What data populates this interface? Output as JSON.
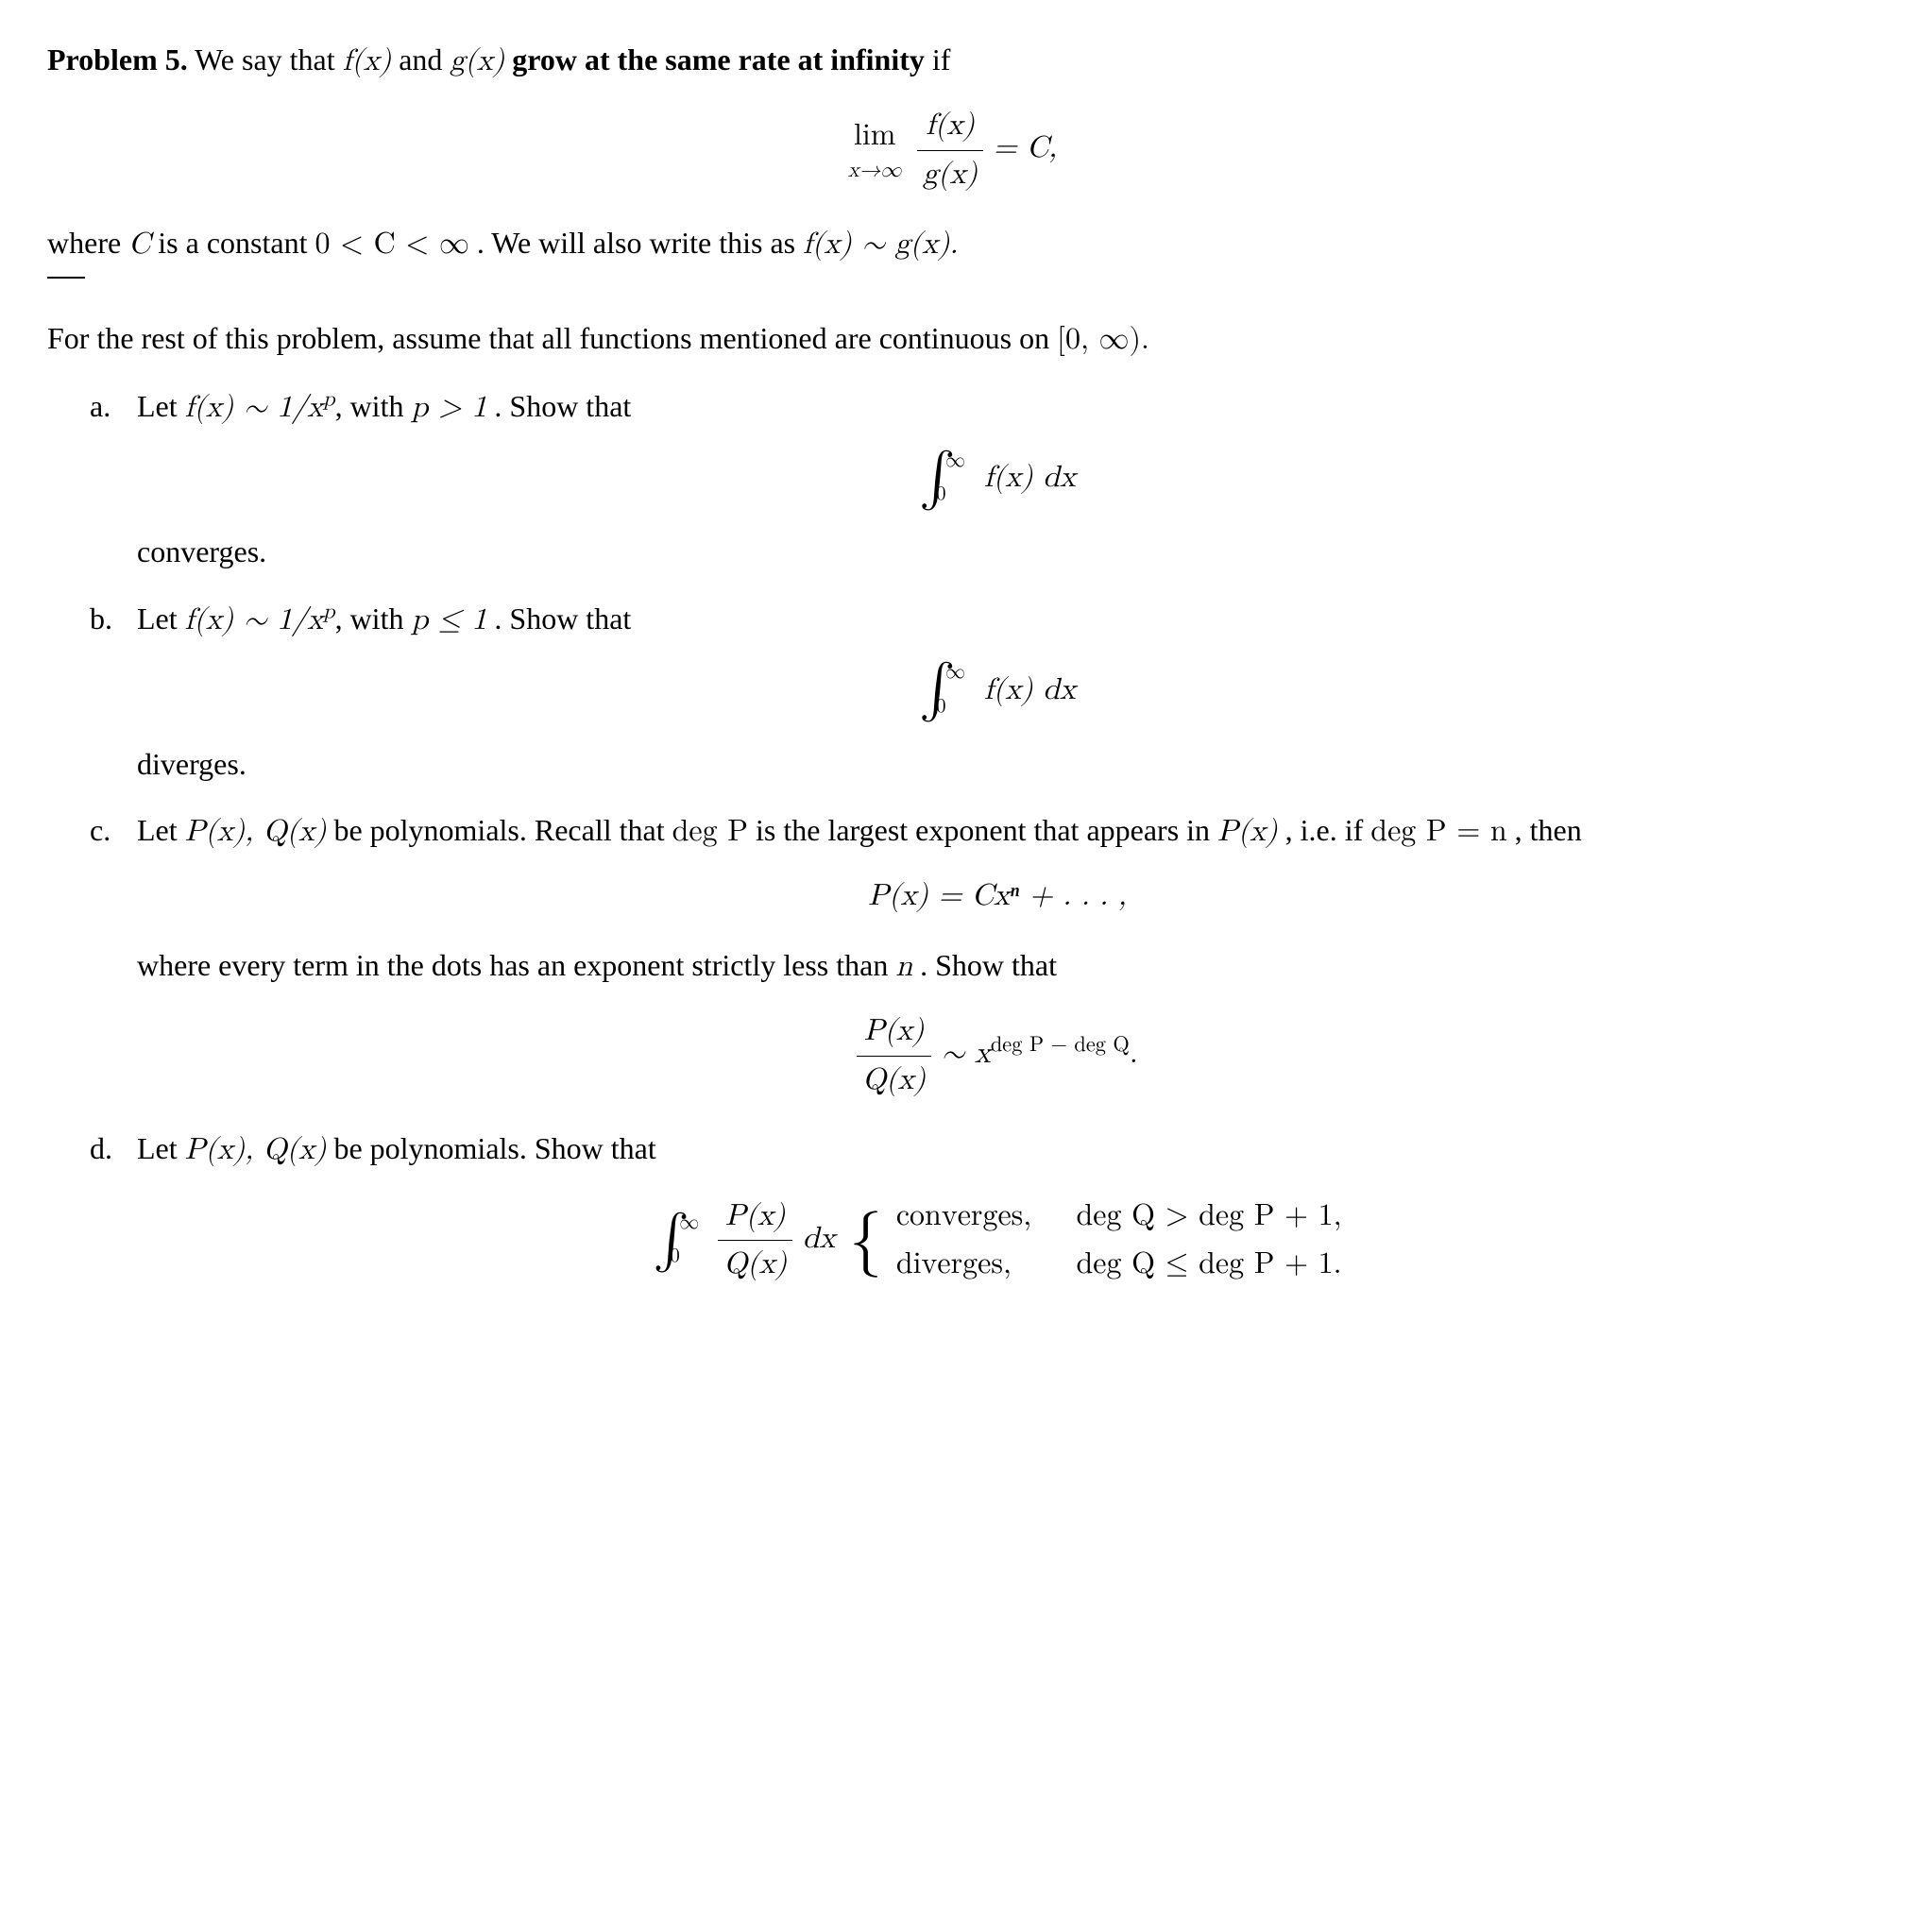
{
  "problem": {
    "number_label": "Problem 5.",
    "intro_text_1": " We say that ",
    "intro_f": "f(x)",
    "intro_and": " and ",
    "intro_g": "g(x)",
    "bold_grow": " grow at the same rate at infinity ",
    "intro_if": "if",
    "limit_expr_lim": "lim",
    "limit_expr_sub": "x→∞",
    "limit_frac_num": "f(x)",
    "limit_frac_den": "g(x)",
    "limit_eq": " = C,",
    "where_text_1": "where ",
    "where_C": "C",
    "where_text_2": " is a constant ",
    "where_ineq": "0 < C < ∞",
    "where_text_3": ". We will also write this as ",
    "where_rel": "f(x) ∼ g(x).",
    "for_rest": "For the rest of this problem, assume that all functions mentioned are continuous on ",
    "interval": "[0, ∞).",
    "part_a": {
      "label": "a.",
      "text_1": "Let ",
      "rel": "f(x) ∼ 1/x",
      "exp": "p",
      "text_2": ", with ",
      "cond": "p > 1",
      "text_3": ". Show that",
      "int_sup": "∞",
      "int_sub": "0",
      "integrand": "f(x) dx",
      "result": "converges."
    },
    "part_b": {
      "label": "b.",
      "text_1": "Let ",
      "rel": "f(x) ∼ 1/x",
      "exp": "p",
      "text_2": ", with ",
      "cond": "p ≤ 1",
      "text_3": ". Show that",
      "int_sup": "∞",
      "int_sub": "0",
      "integrand": "f(x) dx",
      "result": "diverges."
    },
    "part_c": {
      "label": "c.",
      "text_1": "Let ",
      "polys": "P(x), Q(x)",
      "text_2": " be polynomials. Recall that ",
      "deg_P": "deg P",
      "text_3": " is the largest exponent that appears in ",
      "Px": "P(x)",
      "text_4": ", i.e. if ",
      "deg_eq": "deg P = n",
      "text_5": ", then",
      "poly_expand": "P(x) = Cxⁿ + . . . ,",
      "where_dots_1": "where every term in the dots has an exponent strictly less than ",
      "n_var": "n",
      "where_dots_2": ". Show that",
      "frac_num": "P(x)",
      "frac_den": "Q(x)",
      "sim": " ∼ x",
      "sim_exp": "deg P − deg Q",
      "period": "."
    },
    "part_d": {
      "label": "d.",
      "text_1": "Let ",
      "polys": "P(x), Q(x)",
      "text_2": " be polynomials. Show that",
      "int_sup": "∞",
      "int_sub": "0",
      "frac_num": "P(x)",
      "frac_den": "Q(x)",
      "dx": " dx ",
      "case1_result": "converges,",
      "case1_cond": "deg Q > deg P + 1,",
      "case2_result": "diverges,",
      "case2_cond": "deg Q ≤ deg P + 1."
    }
  },
  "style": {
    "font_family": "Palatino Linotype, Book Antiqua, Palatino, Georgia, serif",
    "font_size_pt": 16,
    "text_color": "#000000",
    "background_color": "#ffffff"
  }
}
